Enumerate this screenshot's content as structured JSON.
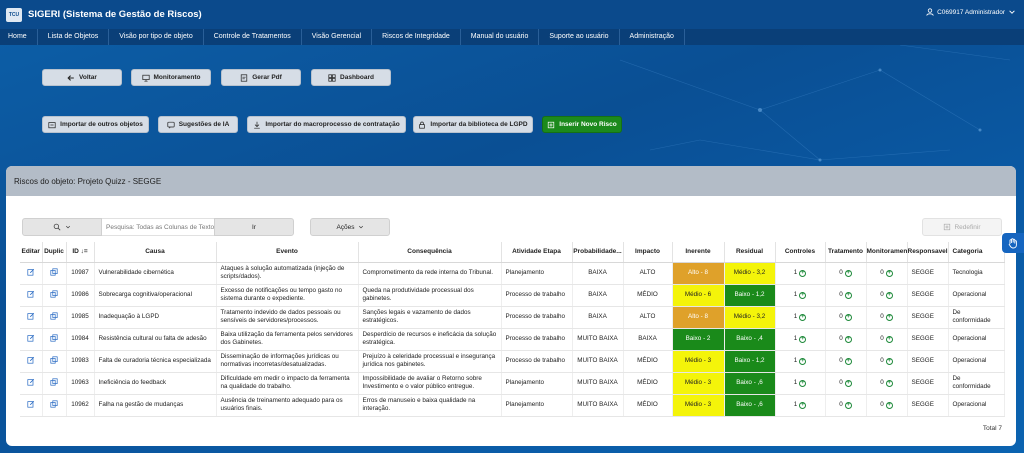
{
  "header": {
    "logo_text": "TCU",
    "title": "SIGERI (Sistema de Gestão de Riscos)",
    "user": "C069917 Administrador"
  },
  "nav": [
    "Home",
    "Lista de Objetos",
    "Visão por tipo de objeto",
    "Controle de Tratamentos",
    "Visão Gerencial",
    "Riscos de Integridade",
    "Manual do usuário",
    "Suporte ao usuário",
    "Administração"
  ],
  "row1_buttons": {
    "voltar": "Voltar",
    "monitoramento": "Monitoramento",
    "gerar_pdf": "Gerar Pdf",
    "dashboard": "Dashboard"
  },
  "row2_buttons": {
    "importar_outros": "Importar de outros objetos",
    "sugestoes_ia": "Sugestões de IA",
    "importar_macro": "Importar do macroprocesso de contratação",
    "importar_lgpd": "Importar da biblioteca de LGPD",
    "inserir": "Inserir Novo Risco"
  },
  "panel": {
    "title": "Riscos do objeto: Projeto Quizz - SEGGE",
    "search_placeholder": "Pesquisa: Todas as Colunas de Texto",
    "go_label": "Ir",
    "actions_label": "Ações",
    "reset_label": "Redefinir",
    "total": "Total 7"
  },
  "columns": [
    "Editar",
    "Duplic",
    "ID ↓=",
    "Causa",
    "Evento",
    "Consequência",
    "Atividade Etapa",
    "Probabilidade...",
    "Impacto",
    "Inerente",
    "Residual",
    "Controles",
    "Tratamento",
    "Monitoramento",
    "Responsavel",
    "Categoria"
  ],
  "rows": [
    {
      "id": "10987",
      "causa": "Vulnerabilidade cibernética",
      "evento": "Ataques à solução automatizada (injeção de scripts/dados).",
      "consequencia": "Comprometimento da rede interna do Tribunal.",
      "atividade": "Planejamento",
      "prob": "BAIXA",
      "impacto": "ALTO",
      "inerente": "Alto - 8",
      "inerente_lvl": "alto",
      "residual": "Médio - 3,2",
      "residual_lvl": "medio",
      "controles": "1",
      "tratamento": "0",
      "monitoramento": "0",
      "responsavel": "SEGGE",
      "categoria": "Tecnologia"
    },
    {
      "id": "10986",
      "causa": "Sobrecarga cognitiva/operacional",
      "evento": "Excesso de notificações ou tempo gasto no sistema durante o expediente.",
      "consequencia": "Queda na produtividade processual dos gabinetes.",
      "atividade": "Processo de trabalho",
      "prob": "BAIXA",
      "impacto": "MÉDIO",
      "inerente": "Médio - 6",
      "inerente_lvl": "medio",
      "residual": "Baixo - 1,2",
      "residual_lvl": "baixo",
      "controles": "1",
      "tratamento": "0",
      "monitoramento": "0",
      "responsavel": "SEGGE",
      "categoria": "Operacional"
    },
    {
      "id": "10985",
      "causa": "Inadequação à LGPD",
      "evento": "Tratamento indevido de dados pessoais ou sensíveis de servidores/processos.",
      "consequencia": "Sanções legais e vazamento de dados estratégicos.",
      "atividade": "Processo de trabalho",
      "prob": "BAIXA",
      "impacto": "ALTO",
      "inerente": "Alto - 8",
      "inerente_lvl": "alto",
      "residual": "Médio - 3,2",
      "residual_lvl": "medio",
      "controles": "1",
      "tratamento": "0",
      "monitoramento": "0",
      "responsavel": "SEGGE",
      "categoria": "De conformidade"
    },
    {
      "id": "10984",
      "causa": "Resistência cultural ou falta de adesão",
      "evento": "Baixa utilização da ferramenta pelos servidores dos Gabinetes.",
      "consequencia": "Desperdício de recursos e ineficácia da solução estratégica.",
      "atividade": "Processo de trabalho",
      "prob": "MUITO BAIXA",
      "impacto": "BAIXA",
      "inerente": "Baixo - 2",
      "inerente_lvl": "baixo",
      "residual": "Baixo - ,4",
      "residual_lvl": "baixo",
      "controles": "1",
      "tratamento": "0",
      "monitoramento": "0",
      "responsavel": "SEGGE",
      "categoria": "Operacional"
    },
    {
      "id": "10983",
      "causa": "Falta de curadoria técnica especializada",
      "evento": "Disseminação de informações jurídicas ou normativas incorretas/desatualizadas.",
      "consequencia": "Prejuízo à celeridade processual e insegurança jurídica nos gabinetes.",
      "atividade": "Processo de trabalho",
      "prob": "MUITO BAIXA",
      "impacto": "MÉDIO",
      "inerente": "Médio - 3",
      "inerente_lvl": "medio",
      "residual": "Baixo - 1,2",
      "residual_lvl": "baixo",
      "controles": "1",
      "tratamento": "0",
      "monitoramento": "0",
      "responsavel": "SEGGE",
      "categoria": "Operacional"
    },
    {
      "id": "10963",
      "causa": "Ineficiência do feedback",
      "evento": "Dificuldade em medir o impacto da ferramenta na qualidade do trabalho.",
      "consequencia": "Impossibilidade de avaliar o Retorno sobre Investimento e o valor público entregue.",
      "atividade": "Planejamento",
      "prob": "MUITO BAIXA",
      "impacto": "MÉDIO",
      "inerente": "Médio - 3",
      "inerente_lvl": "medio",
      "residual": "Baixo - ,6",
      "residual_lvl": "baixo",
      "controles": "1",
      "tratamento": "0",
      "monitoramento": "0",
      "responsavel": "SEGGE",
      "categoria": "De conformidade"
    },
    {
      "id": "10962",
      "causa": "Falha na gestão de mudanças",
      "evento": "Ausência de treinamento adequado para os usuários finais.",
      "consequencia": "Erros de manuseio e baixa qualidade na interação.",
      "atividade": "Planejamento",
      "prob": "MUITO BAIXA",
      "impacto": "MÉDIO",
      "inerente": "Médio - 3",
      "inerente_lvl": "medio",
      "residual": "Baixo - ,6",
      "residual_lvl": "baixo",
      "controles": "1",
      "tratamento": "0",
      "monitoramento": "0",
      "responsavel": "SEGGE",
      "categoria": "Operacional"
    }
  ],
  "colors": {
    "alto": "#dfa12a",
    "medio": "#f4f40a",
    "baixo": "#1a8a1a",
    "primary": "#0b4a8c"
  }
}
